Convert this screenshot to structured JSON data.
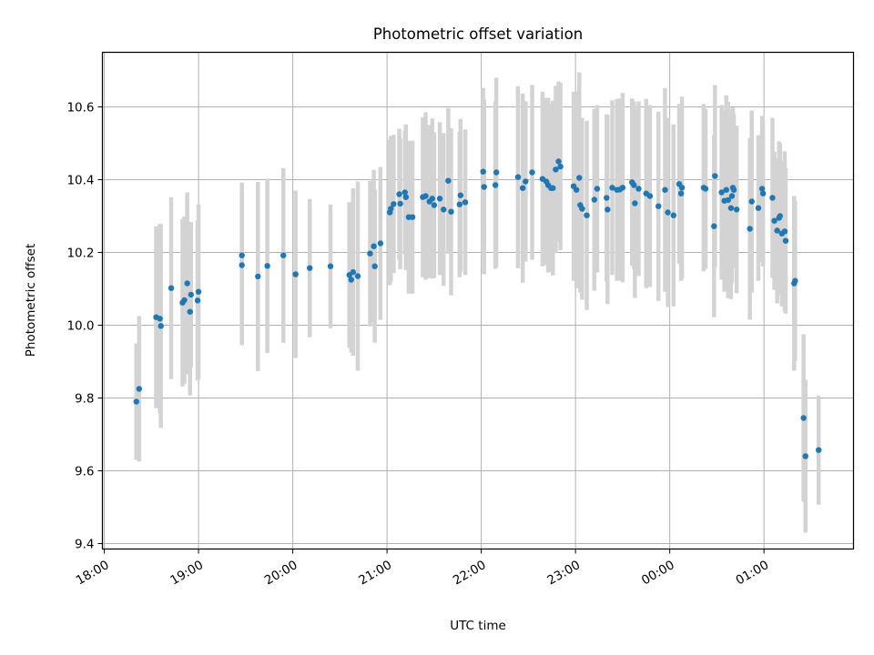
{
  "chart_data": {
    "type": "scatter",
    "title": "Photometric offset variation",
    "xlabel": "UTC time",
    "ylabel": "Photometric offset",
    "x_unit": "hours (UTC, past 00:00 of first night)",
    "xlim": [
      17.98,
      25.95
    ],
    "ylim": [
      9.385,
      10.75
    ],
    "x_ticks": [
      {
        "value": 18,
        "label": "18:00"
      },
      {
        "value": 19,
        "label": "19:00"
      },
      {
        "value": 20,
        "label": "20:00"
      },
      {
        "value": 21,
        "label": "21:00"
      },
      {
        "value": 22,
        "label": "22:00"
      },
      {
        "value": 23,
        "label": "23:00"
      },
      {
        "value": 24,
        "label": "00:00"
      },
      {
        "value": 25,
        "label": "01:00"
      }
    ],
    "y_ticks": [
      {
        "value": 9.4,
        "label": "9.4"
      },
      {
        "value": 9.6,
        "label": "9.6"
      },
      {
        "value": 9.8,
        "label": "9.8"
      },
      {
        "value": 10.0,
        "label": "10.0"
      },
      {
        "value": 10.2,
        "label": "10.2"
      },
      {
        "value": 10.4,
        "label": "10.4"
      },
      {
        "value": 10.6,
        "label": "10.6"
      }
    ],
    "grid": true,
    "colors": {
      "point": "#1f77b4",
      "error_bar": "#d3d3d3",
      "grid": "#b0b0b0",
      "axes": "#000000"
    },
    "series": [
      {
        "x": [
          18.34,
          18.37,
          18.55,
          18.59,
          18.6,
          18.71,
          18.83,
          18.85,
          18.88,
          18.91,
          18.92,
          18.99,
          19.0,
          19.46,
          19.46,
          19.63,
          19.73,
          19.9,
          20.03,
          20.18,
          20.4,
          20.6,
          20.62,
          20.64,
          20.69,
          20.82,
          20.86,
          20.87,
          20.93,
          21.03,
          21.04,
          21.07,
          21.13,
          21.14,
          21.19,
          21.2,
          21.23,
          21.27,
          21.38,
          21.41,
          21.45,
          21.48,
          21.5,
          21.56,
          21.6,
          21.65,
          21.68,
          21.77,
          21.78,
          21.83,
          22.02,
          22.03,
          22.15,
          22.16,
          22.39,
          22.44,
          22.47,
          22.54,
          22.65,
          22.69,
          22.71,
          22.74,
          22.76,
          22.79,
          22.82,
          22.84,
          22.98,
          23.01,
          23.04,
          23.05,
          23.07,
          23.12,
          23.2,
          23.23,
          23.33,
          23.34,
          23.39,
          23.44,
          23.47,
          23.5,
          23.6,
          23.62,
          23.63,
          23.67,
          23.75,
          23.79,
          23.88,
          23.95,
          23.98,
          24.04,
          24.1,
          24.12,
          24.13,
          24.36,
          24.38,
          24.47,
          24.48,
          24.55,
          24.58,
          24.6,
          24.62,
          24.65,
          24.66,
          24.67,
          24.68,
          24.71,
          24.85,
          24.87,
          24.94,
          24.98,
          24.99,
          25.09,
          25.11,
          25.14,
          25.16,
          25.17,
          25.19,
          25.22,
          25.23,
          25.32,
          25.33,
          25.42,
          25.44,
          25.58
        ],
        "y": [
          9.79,
          9.825,
          10.022,
          10.018,
          9.998,
          10.102,
          10.062,
          10.069,
          10.115,
          10.037,
          10.084,
          10.068,
          10.092,
          10.165,
          10.192,
          10.134,
          10.163,
          10.192,
          10.14,
          10.157,
          10.162,
          10.138,
          10.125,
          10.146,
          10.135,
          10.197,
          10.217,
          10.162,
          10.225,
          10.31,
          10.32,
          10.333,
          10.36,
          10.334,
          10.365,
          10.352,
          10.297,
          10.297,
          10.352,
          10.355,
          10.34,
          10.348,
          10.33,
          10.348,
          10.318,
          10.397,
          10.312,
          10.332,
          10.357,
          10.338,
          10.422,
          10.38,
          10.385,
          10.42,
          10.407,
          10.377,
          10.395,
          10.42,
          10.402,
          10.395,
          10.385,
          10.377,
          10.377,
          10.428,
          10.45,
          10.436,
          10.382,
          10.372,
          10.405,
          10.33,
          10.32,
          10.302,
          10.345,
          10.375,
          10.35,
          10.318,
          10.378,
          10.372,
          10.373,
          10.378,
          10.393,
          10.385,
          10.335,
          10.375,
          10.362,
          10.355,
          10.327,
          10.372,
          10.31,
          10.302,
          10.388,
          10.362,
          10.378,
          10.378,
          10.375,
          10.272,
          10.41,
          10.365,
          10.342,
          10.372,
          10.344,
          10.322,
          10.355,
          10.378,
          10.372,
          10.318,
          10.265,
          10.34,
          10.322,
          10.375,
          10.362,
          10.35,
          10.287,
          10.26,
          10.295,
          10.3,
          10.252,
          10.258,
          10.232,
          10.115,
          10.122,
          9.745,
          9.64,
          9.657
        ],
        "err": [
          0.16,
          0.2,
          0.25,
          0.26,
          0.28,
          0.25,
          0.23,
          0.23,
          0.25,
          0.23,
          0.2,
          0.22,
          0.24,
          0.22,
          0.2,
          0.26,
          0.24,
          0.24,
          0.23,
          0.19,
          0.17,
          0.2,
          0.2,
          0.23,
          0.26,
          0.2,
          0.21,
          0.21,
          0.21,
          0.2,
          0.2,
          0.19,
          0.18,
          0.18,
          0.17,
          0.2,
          0.21,
          0.21,
          0.22,
          0.23,
          0.21,
          0.22,
          0.2,
          0.21,
          0.21,
          0.2,
          0.23,
          0.2,
          0.21,
          0.2,
          0.23,
          0.24,
          0.23,
          0.26,
          0.25,
          0.26,
          0.22,
          0.24,
          0.24,
          0.23,
          0.24,
          0.23,
          0.24,
          0.23,
          0.22,
          0.23,
          0.26,
          0.27,
          0.29,
          0.24,
          0.25,
          0.26,
          0.25,
          0.23,
          0.23,
          0.26,
          0.24,
          0.25,
          0.25,
          0.26,
          0.23,
          0.23,
          0.26,
          0.24,
          0.26,
          0.25,
          0.26,
          0.28,
          0.26,
          0.25,
          0.22,
          0.24,
          0.25,
          0.23,
          0.22,
          0.25,
          0.25,
          0.24,
          0.25,
          0.26,
          0.27,
          0.25,
          0.24,
          0.22,
          0.21,
          0.23,
          0.25,
          0.25,
          0.2,
          0.2,
          0.2,
          0.22,
          0.19,
          0.2,
          0.21,
          0.2,
          0.2,
          0.22,
          0.2,
          0.24,
          0.22,
          0.23,
          0.21,
          0.15
        ]
      }
    ]
  }
}
